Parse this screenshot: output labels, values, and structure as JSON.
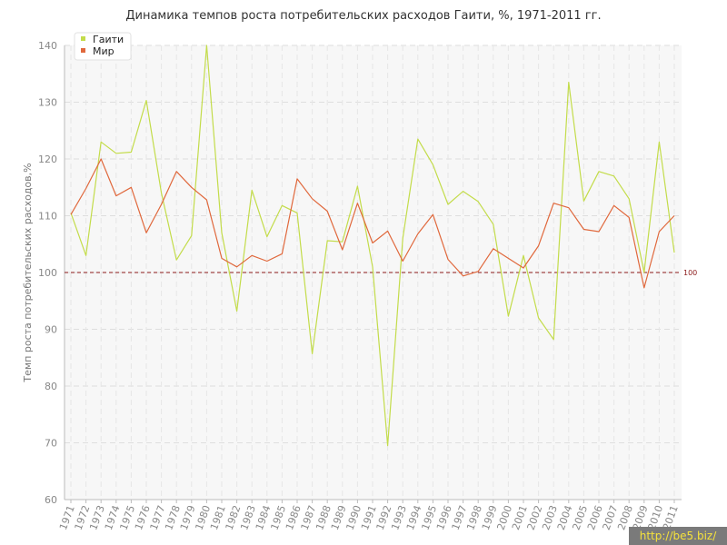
{
  "chart_data": {
    "type": "line",
    "title": "Динамика темпов роста потребительских расходов Гаити, %, 1971-2011 гг.",
    "xlabel": "",
    "ylabel": "Темп роста потребительских расходов,%",
    "ylim": [
      60,
      140
    ],
    "yticks": [
      60,
      70,
      80,
      90,
      100,
      110,
      120,
      130,
      140
    ],
    "grid": true,
    "legend_position": "top-left",
    "categories": [
      "1971",
      "1972",
      "1973",
      "1974",
      "1975",
      "1976",
      "1977",
      "1978",
      "1979",
      "1980",
      "1981",
      "1982",
      "1983",
      "1984",
      "1985",
      "1986",
      "1987",
      "1988",
      "1989",
      "1990",
      "1991",
      "1992",
      "1993",
      "1994",
      "1995",
      "1996",
      "1997",
      "1998",
      "1999",
      "2000",
      "2001",
      "2002",
      "2003",
      "2004",
      "2005",
      "2006",
      "2007",
      "2008",
      "2009",
      "2010",
      "2011"
    ],
    "series": [
      {
        "name": "Гаити",
        "color": "#c3dc4a",
        "values": [
          110.5,
          103.0,
          123.0,
          121.0,
          121.2,
          130.3,
          114.0,
          102.2,
          106.5,
          140.0,
          107.0,
          93.2,
          114.5,
          106.3,
          111.8,
          110.5,
          85.7,
          105.6,
          105.4,
          115.2,
          101.0,
          69.5,
          106.0,
          123.5,
          119.0,
          112.0,
          114.3,
          112.5,
          108.5,
          92.3,
          103.0,
          92.0,
          88.2,
          133.5,
          112.6,
          117.8,
          117.0,
          113.0,
          100.0,
          123.0,
          103.5
        ]
      },
      {
        "name": "Мир",
        "color": "#e0683c",
        "values": [
          110.2,
          114.8,
          120.0,
          113.5,
          115.0,
          107.0,
          112.0,
          117.8,
          115.0,
          112.8,
          102.5,
          101.0,
          103.0,
          102.0,
          103.3,
          116.5,
          113.0,
          110.8,
          104.0,
          112.2,
          105.2,
          107.3,
          102.0,
          106.8,
          110.2,
          102.3,
          99.4,
          100.2,
          104.2,
          102.5,
          100.8,
          104.7,
          112.2,
          111.4,
          107.6,
          107.2,
          111.8,
          109.7,
          97.3,
          107.2,
          110.0
        ]
      }
    ],
    "reference_line": {
      "value": 100,
      "label": "100",
      "color": "#8b1a1a"
    }
  },
  "watermark": "http://be5.biz/"
}
